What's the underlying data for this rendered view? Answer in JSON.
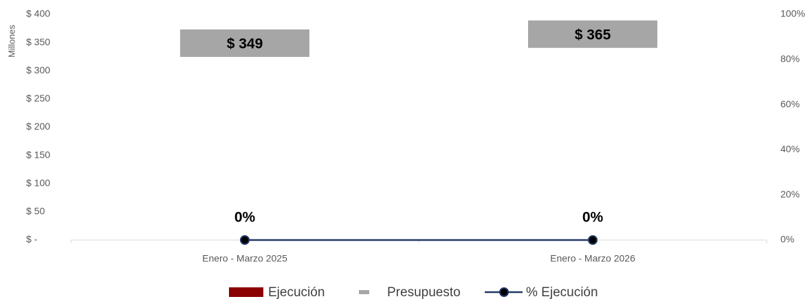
{
  "chart_data": {
    "type": "combo",
    "y_axis_label": "Millones",
    "categories": [
      "Enero - Marzo 2025",
      "Enero - Marzo 2026"
    ],
    "series": [
      {
        "name": "Ejecución",
        "type": "bar",
        "color": "#8b0000",
        "values": [
          0,
          0
        ]
      },
      {
        "name": "Presupuesto",
        "type": "marker",
        "color": "#a6a6a6",
        "values": [
          349,
          365
        ],
        "value_labels": [
          "$ 349",
          "$ 365"
        ]
      },
      {
        "name": "% Ejecución",
        "type": "line",
        "axis": "y2",
        "color": "#1f3864",
        "values": [
          0,
          0
        ],
        "value_labels": [
          "0%",
          "0%"
        ]
      }
    ],
    "ylim": [
      0,
      400
    ],
    "yticks": [
      {
        "value": 0,
        "label": "$ -"
      },
      {
        "value": 50,
        "label": "$ 50"
      },
      {
        "value": 100,
        "label": "$ 100"
      },
      {
        "value": 150,
        "label": "$ 150"
      },
      {
        "value": 200,
        "label": "$ 200"
      },
      {
        "value": 250,
        "label": "$ 250"
      },
      {
        "value": 300,
        "label": "$ 300"
      },
      {
        "value": 350,
        "label": "$ 350"
      },
      {
        "value": 400,
        "label": "$ 400"
      }
    ],
    "y2lim": [
      0,
      100
    ],
    "y2ticks": [
      {
        "value": 0,
        "label": "0%"
      },
      {
        "value": 20,
        "label": "20%"
      },
      {
        "value": 40,
        "label": "40%"
      },
      {
        "value": 60,
        "label": "60%"
      },
      {
        "value": 80,
        "label": "80%"
      },
      {
        "value": 100,
        "label": "100%"
      }
    ],
    "legend": "bottom"
  }
}
